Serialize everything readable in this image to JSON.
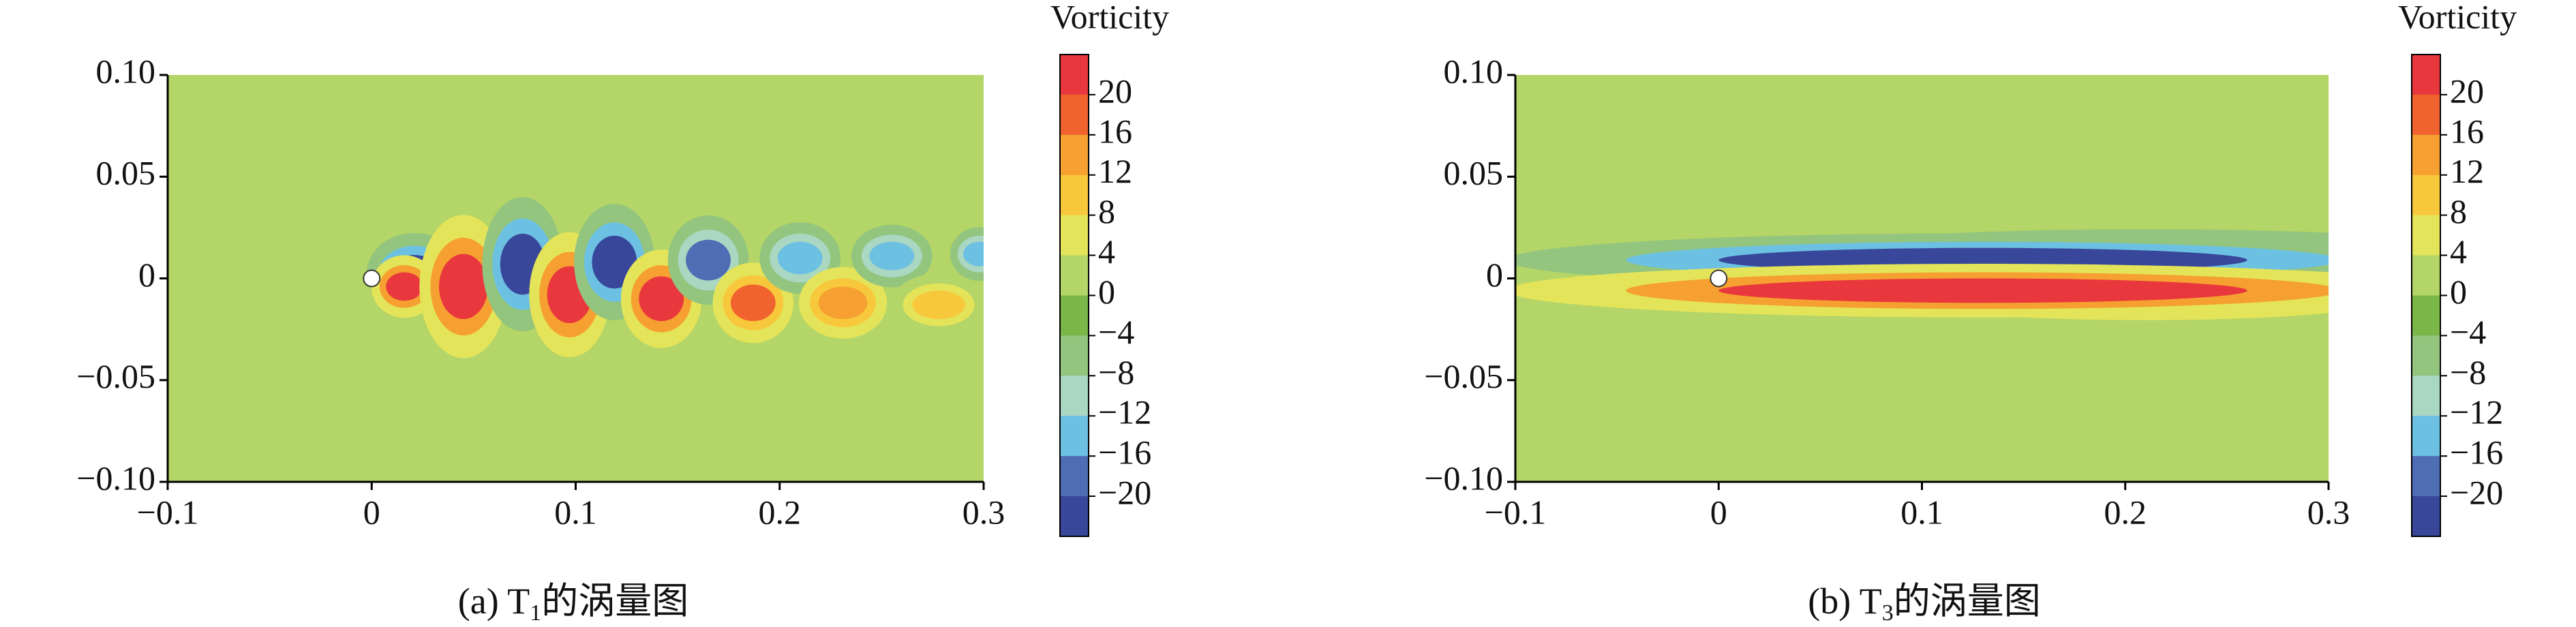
{
  "chart_data": [
    {
      "type": "contour",
      "colorbar_title": "Vorticity",
      "caption_prefix": "(a) T",
      "caption_sub": "1",
      "caption_suffix": "的涡量图",
      "xlim": [
        -0.1,
        0.3
      ],
      "ylim": [
        -0.1,
        0.1
      ],
      "xticks": [
        {
          "value": -0.1,
          "label": "−0.1"
        },
        0,
        0.1,
        0.2,
        0.3
      ],
      "yticks": [
        {
          "value": 0.1,
          "label": "0.10"
        },
        0.05,
        0,
        {
          "value": -0.05,
          "label": "−0.05"
        },
        {
          "value": -0.1,
          "label": "−0.10"
        }
      ],
      "clim": [
        -24,
        24
      ],
      "cticks": [
        20,
        16,
        12,
        8,
        4,
        0,
        {
          "value": -4,
          "label": "−4"
        },
        {
          "value": -8,
          "label": "−8"
        },
        {
          "value": -12,
          "label": "−12"
        },
        {
          "value": -16,
          "label": "−16"
        },
        {
          "value": -20,
          "label": "−20"
        }
      ],
      "colors": [
        "#e8383d",
        "#f0632f",
        "#f5a030",
        "#f8c83c",
        "#e4e45a",
        "#b4d567",
        "#7ab648",
        "#93c57e",
        "#a9d7c2",
        "#6cc0e2",
        "#4e6db4",
        "#38479a"
      ],
      "background_value": 2,
      "cylinder": {
        "x": 0,
        "y": 0,
        "r": 0.004
      },
      "vortices": [
        {
          "x": 0.021,
          "y": 0.0025,
          "rx": 0.013,
          "ry": 0.009,
          "value": -22
        },
        {
          "x": 0.016,
          "y": -0.004,
          "rx": 0.009,
          "ry": 0.007,
          "value": 22
        },
        {
          "x": 0.045,
          "y": -0.004,
          "rx": 0.012,
          "ry": 0.016,
          "value": 22
        },
        {
          "x": 0.074,
          "y": 0.007,
          "rx": 0.011,
          "ry": 0.015,
          "value": -22
        },
        {
          "x": 0.097,
          "y": -0.008,
          "rx": 0.011,
          "ry": 0.014,
          "value": 22
        },
        {
          "x": 0.119,
          "y": 0.008,
          "rx": 0.011,
          "ry": 0.013,
          "value": -22
        },
        {
          "x": 0.142,
          "y": -0.01,
          "rx": 0.011,
          "ry": 0.011,
          "value": 21
        },
        {
          "x": 0.165,
          "y": 0.009,
          "rx": 0.011,
          "ry": 0.01,
          "value": -18
        },
        {
          "x": 0.187,
          "y": -0.012,
          "rx": 0.011,
          "ry": 0.009,
          "value": 18
        },
        {
          "x": 0.21,
          "y": 0.01,
          "rx": 0.011,
          "ry": 0.008,
          "value": -14
        },
        {
          "x": 0.231,
          "y": -0.012,
          "rx": 0.012,
          "ry": 0.008,
          "value": 14
        },
        {
          "x": 0.255,
          "y": 0.011,
          "rx": 0.011,
          "ry": 0.007,
          "value": -14
        },
        {
          "x": 0.278,
          "y": -0.013,
          "rx": 0.013,
          "ry": 0.007,
          "value": 10
        },
        {
          "x": 0.298,
          "y": 0.012,
          "rx": 0.008,
          "ry": 0.006,
          "value": -14
        }
      ]
    },
    {
      "type": "contour",
      "colorbar_title": "Vorticity",
      "caption_prefix": "(b) T",
      "caption_sub": "3",
      "caption_suffix": "的涡量图",
      "xlim": [
        -0.1,
        0.3
      ],
      "ylim": [
        -0.1,
        0.1
      ],
      "xticks": [
        {
          "value": -0.1,
          "label": "−0.1"
        },
        0,
        0.1,
        0.2,
        0.3
      ],
      "yticks": [
        {
          "value": 0.1,
          "label": "0.10"
        },
        0.05,
        0,
        {
          "value": -0.05,
          "label": "−0.05"
        },
        {
          "value": -0.1,
          "label": "−0.10"
        }
      ],
      "clim": [
        -24,
        24
      ],
      "cticks": [
        20,
        16,
        12,
        8,
        4,
        0,
        {
          "value": -4,
          "label": "−4"
        },
        {
          "value": -8,
          "label": "−8"
        },
        {
          "value": -12,
          "label": "−12"
        },
        {
          "value": -16,
          "label": "−16"
        },
        {
          "value": -20,
          "label": "−20"
        }
      ],
      "colors": [
        "#e8383d",
        "#f0632f",
        "#f5a030",
        "#f8c83c",
        "#e4e45a",
        "#b4d567",
        "#7ab648",
        "#93c57e",
        "#a9d7c2",
        "#6cc0e2",
        "#4e6db4",
        "#38479a"
      ],
      "background_value": 2,
      "cylinder": {
        "x": 0,
        "y": 0,
        "r": 0.004
      },
      "vortices": [
        {
          "x": 0.21,
          "y": 0.011,
          "rx": 0.1,
          "ry": 0.006,
          "value": -14
        },
        {
          "x": 0.21,
          "y": -0.01,
          "rx": 0.09,
          "ry": 0.007,
          "value": 10
        },
        {
          "x": 0.13,
          "y": 0.009,
          "rx": 0.13,
          "ry": 0.006,
          "value": -22
        },
        {
          "x": 0.13,
          "y": -0.006,
          "rx": 0.13,
          "ry": 0.006,
          "value": 22
        }
      ]
    }
  ]
}
